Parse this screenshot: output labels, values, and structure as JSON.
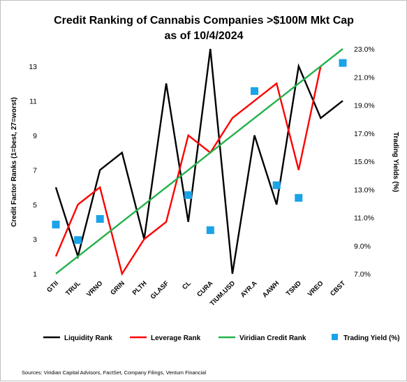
{
  "chart_data": {
    "type": "line",
    "title_line1": "Credit Ranking of Cannabis Companies >$100M Mkt Cap",
    "title_line2": "as of 10/4/2024",
    "ylabel_left": "Credit Factor Ranks (1=best, 27=worst)",
    "ylabel_right": "Trading Yields (%)",
    "categories": [
      "GTII",
      "TRUL",
      "VRNO",
      "GRIN",
      "PLTH",
      "GLASF",
      "CL",
      "CURA",
      "TIUM.USD",
      "AYR.A",
      "AAWH",
      "TSND",
      "VREO",
      "CBST"
    ],
    "y_left": {
      "min": 1,
      "max": 14,
      "ticks": [
        1,
        3,
        5,
        7,
        9,
        11,
        13
      ]
    },
    "y_right": {
      "min": 7.0,
      "max": 23.0,
      "ticks": [
        "7.0%",
        "9.0%",
        "11.0%",
        "13.0%",
        "15.0%",
        "17.0%",
        "19.0%",
        "21.0%",
        "23.0%"
      ],
      "tick_values": [
        7,
        9,
        11,
        13,
        15,
        17,
        19,
        21,
        23
      ]
    },
    "series": [
      {
        "name": "Liquidity Rank",
        "axis": "left",
        "kind": "line",
        "color": "#000000",
        "values": [
          6,
          2,
          7,
          8,
          3,
          12,
          4,
          14,
          1,
          9,
          5,
          13,
          10,
          11
        ]
      },
      {
        "name": "Leverage Rank",
        "axis": "left",
        "kind": "line",
        "color": "#ff0000",
        "values": [
          2,
          5,
          6,
          1,
          3,
          4,
          9,
          8,
          10,
          11,
          12,
          7,
          13,
          null
        ]
      },
      {
        "name": "Viridian Credit Rank",
        "axis": "left",
        "kind": "line",
        "color": "#22b14c",
        "values": [
          1,
          2,
          3,
          4,
          5,
          6,
          7,
          8,
          9,
          10,
          11,
          12,
          13,
          14
        ]
      },
      {
        "name": "Trading Yield (%)",
        "axis": "right",
        "kind": "marker",
        "color": "#1aa3e8",
        "values": [
          10.5,
          9.4,
          10.9,
          null,
          null,
          null,
          12.6,
          10.1,
          null,
          20.0,
          13.3,
          12.4,
          null,
          22.0
        ]
      }
    ],
    "legend_position": "bottom",
    "grid": false,
    "source": "Sources: Viridian Capital Advisors, FactSet, Company Filings, Ventum Financial"
  }
}
